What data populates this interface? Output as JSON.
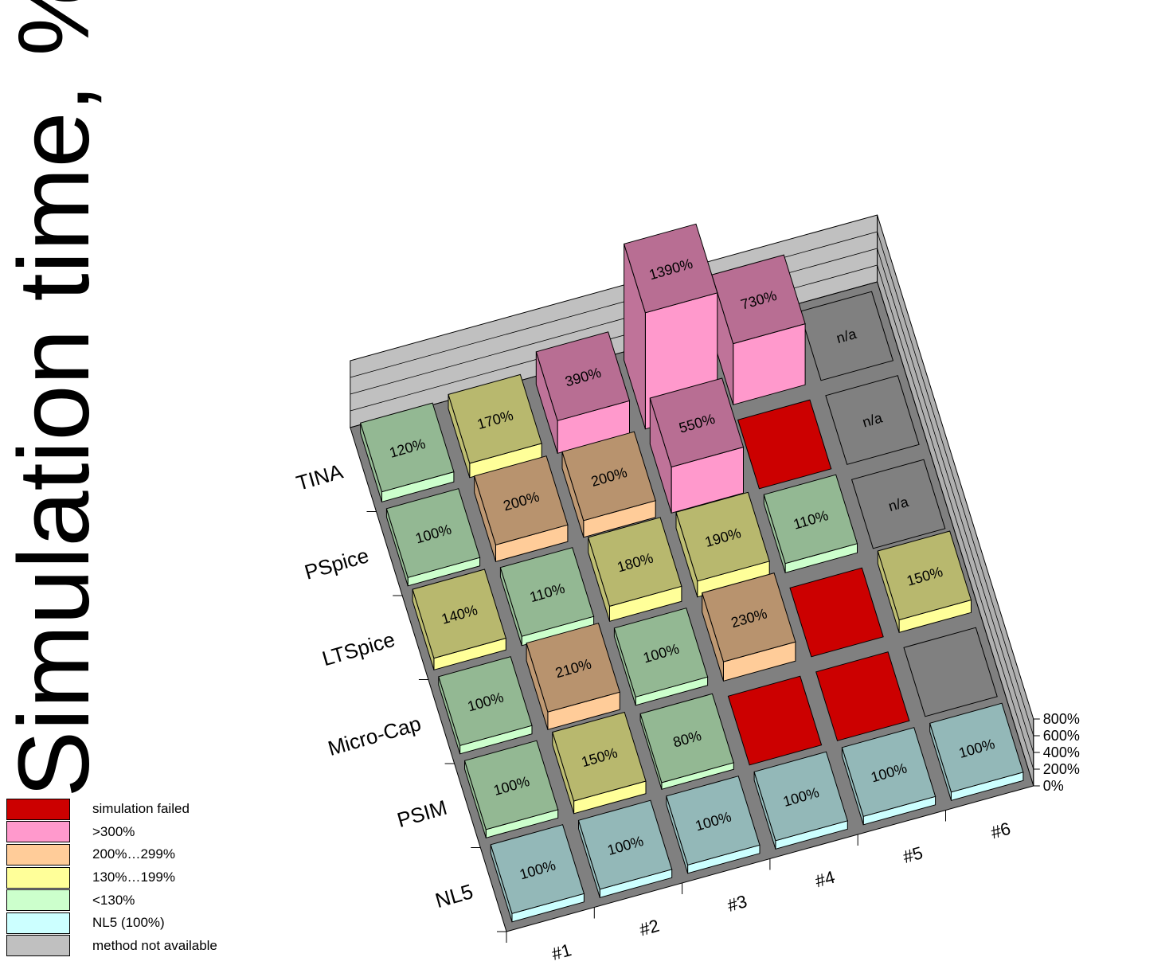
{
  "chart_data": {
    "type": "bar",
    "subtype": "3d-grid",
    "ylabel": "Simulation time, %",
    "y_ticks": [
      "0%",
      "200%",
      "400%",
      "600%",
      "800%"
    ],
    "ylim": [
      0,
      800
    ],
    "rows": [
      "TINA",
      "PSpice",
      "LTSpice",
      "Micro-Cap",
      "PSIM",
      "NL5"
    ],
    "columns": [
      "#1",
      "#2",
      "#3",
      "#4",
      "#5",
      "#6"
    ],
    "categories": {
      "failed": "simulation failed",
      "gt300": ">300%",
      "r200": "200%…299%",
      "r130": "130%…199%",
      "lt130": "<130%",
      "nl5": "NL5 (100%)",
      "na": "method not available"
    },
    "colors": {
      "failed": "#cc0000",
      "gt300": "#ff99cc",
      "r200": "#ffcc99",
      "r130": "#ffff99",
      "lt130": "#ccffcc",
      "nl5": "#ccffff",
      "na": "#c0c0c0"
    },
    "cells": [
      [
        {
          "v": 120,
          "label": "120%",
          "cat": "lt130"
        },
        {
          "v": 170,
          "label": "170%",
          "cat": "r130"
        },
        {
          "v": 390,
          "label": "390%",
          "cat": "gt300"
        },
        {
          "v": 1390,
          "label": "1390%",
          "cat": "gt300"
        },
        {
          "v": 730,
          "label": "730%",
          "cat": "gt300"
        },
        {
          "v": 0,
          "label": "n/a",
          "cat": "na"
        }
      ],
      [
        {
          "v": 100,
          "label": "100%",
          "cat": "lt130"
        },
        {
          "v": 200,
          "label": "200%",
          "cat": "r200"
        },
        {
          "v": 200,
          "label": "200%",
          "cat": "r200"
        },
        {
          "v": 550,
          "label": "550%",
          "cat": "gt300"
        },
        {
          "v": 0,
          "label": "",
          "cat": "failed"
        },
        {
          "v": 0,
          "label": "n/a",
          "cat": "na"
        }
      ],
      [
        {
          "v": 140,
          "label": "140%",
          "cat": "r130"
        },
        {
          "v": 110,
          "label": "110%",
          "cat": "lt130"
        },
        {
          "v": 180,
          "label": "180%",
          "cat": "r130"
        },
        {
          "v": 190,
          "label": "190%",
          "cat": "r130"
        },
        {
          "v": 110,
          "label": "110%",
          "cat": "lt130"
        },
        {
          "v": 0,
          "label": "n/a",
          "cat": "na"
        }
      ],
      [
        {
          "v": 100,
          "label": "100%",
          "cat": "lt130"
        },
        {
          "v": 210,
          "label": "210%",
          "cat": "r200"
        },
        {
          "v": 100,
          "label": "100%",
          "cat": "lt130"
        },
        {
          "v": 230,
          "label": "230%",
          "cat": "r200"
        },
        {
          "v": 0,
          "label": "",
          "cat": "failed"
        },
        {
          "v": 150,
          "label": "150%",
          "cat": "r130"
        }
      ],
      [
        {
          "v": 100,
          "label": "100%",
          "cat": "lt130"
        },
        {
          "v": 150,
          "label": "150%",
          "cat": "r130"
        },
        {
          "v": 80,
          "label": "80%",
          "cat": "lt130"
        },
        {
          "v": 0,
          "label": "",
          "cat": "failed"
        },
        {
          "v": 0,
          "label": "",
          "cat": "failed"
        },
        {
          "v": 0,
          "label": "",
          "cat": "na"
        }
      ],
      [
        {
          "v": 100,
          "label": "100%",
          "cat": "nl5"
        },
        {
          "v": 100,
          "label": "100%",
          "cat": "nl5"
        },
        {
          "v": 100,
          "label": "100%",
          "cat": "nl5"
        },
        {
          "v": 100,
          "label": "100%",
          "cat": "nl5"
        },
        {
          "v": 100,
          "label": "100%",
          "cat": "nl5"
        },
        {
          "v": 100,
          "label": "100%",
          "cat": "nl5"
        }
      ]
    ],
    "legend_order": [
      "failed",
      "gt300",
      "r200",
      "r130",
      "lt130",
      "nl5",
      "na"
    ]
  }
}
